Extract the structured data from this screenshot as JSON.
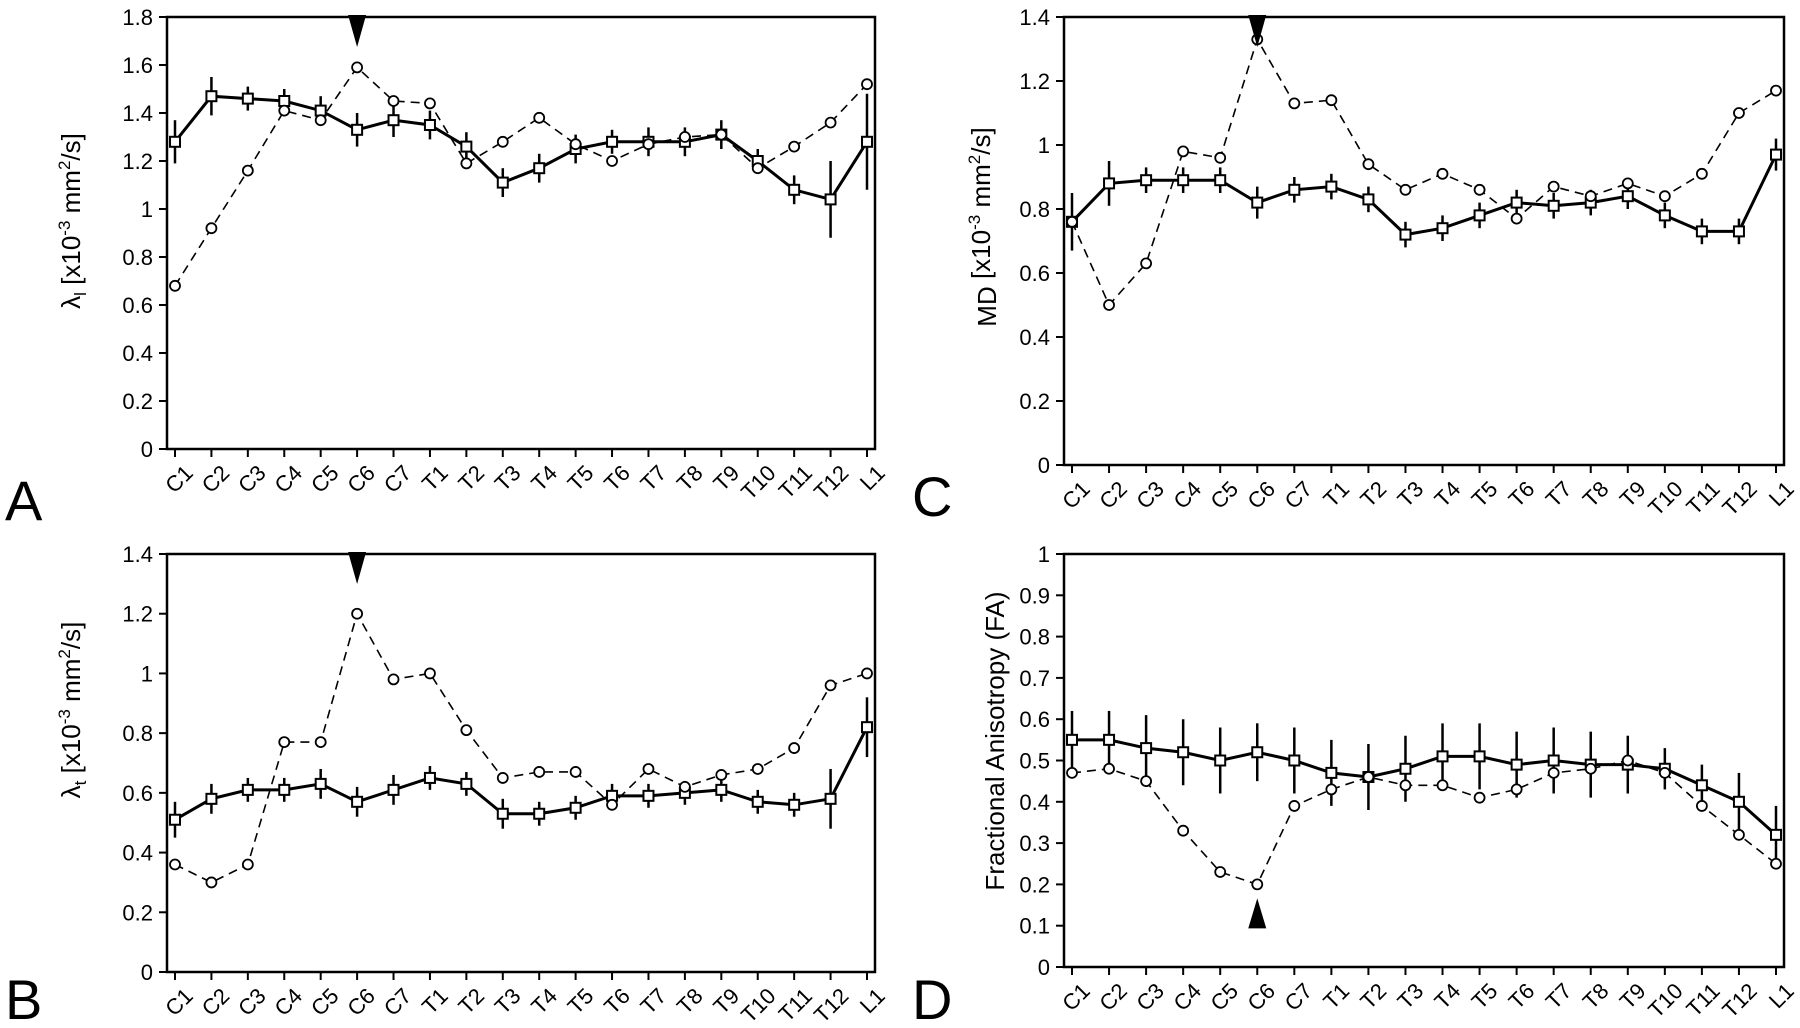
{
  "categories": [
    "C1",
    "C2",
    "C3",
    "C4",
    "C5",
    "C6",
    "C7",
    "T1",
    "T2",
    "T3",
    "T4",
    "T5",
    "T6",
    "T7",
    "T8",
    "T9",
    "T10",
    "T11",
    "T12",
    "L1"
  ],
  "colors": {
    "line": "#000000",
    "background": "#ffffff"
  },
  "chart_data": [
    {
      "panel": "A",
      "type": "line",
      "ylabel_main": "λ",
      "ylabel_sub": "l",
      "ylabel_rest": " [x10",
      "ylabel_exp": "-3",
      "ylabel_unit": " mm",
      "ylabel_exp2": "2",
      "ylabel_end": "/s]",
      "ylim": [
        0,
        1.8
      ],
      "yticks": [
        0,
        0.2,
        0.4,
        0.6,
        0.8,
        1,
        1.2,
        1.4,
        1.6,
        1.8
      ],
      "yticklabels": [
        "0",
        "0.2",
        "0.4",
        "0.6",
        "0.8",
        "1",
        "1.2",
        "1.4",
        "1.6",
        "1.8"
      ],
      "arrow": {
        "category": "C6",
        "direction": "down"
      },
      "series": [
        {
          "marker": "square",
          "style": "solid",
          "values": [
            1.28,
            1.47,
            1.46,
            1.45,
            1.41,
            1.33,
            1.37,
            1.35,
            1.26,
            1.11,
            1.17,
            1.25,
            1.28,
            1.28,
            1.28,
            1.31,
            1.2,
            1.08,
            1.04,
            1.28
          ],
          "errors": [
            0.09,
            0.08,
            0.05,
            0.05,
            0.06,
            0.07,
            0.07,
            0.06,
            0.06,
            0.06,
            0.06,
            0.06,
            0.05,
            0.06,
            0.06,
            0.06,
            0.05,
            0.06,
            0.16,
            0.2
          ]
        },
        {
          "marker": "circle",
          "style": "dashed",
          "values": [
            0.68,
            0.92,
            1.16,
            1.41,
            1.37,
            1.59,
            1.45,
            1.44,
            1.19,
            1.28,
            1.38,
            1.27,
            1.2,
            1.27,
            1.3,
            1.31,
            1.17,
            1.26,
            1.36,
            1.52
          ]
        }
      ]
    },
    {
      "panel": "B",
      "type": "line",
      "ylabel_main": "λ",
      "ylabel_sub": "t",
      "ylabel_rest": " [x10",
      "ylabel_exp": "-3",
      "ylabel_unit": " mm",
      "ylabel_exp2": "2",
      "ylabel_end": "/s]",
      "ylim": [
        0,
        1.4
      ],
      "yticks": [
        0,
        0.2,
        0.4,
        0.6,
        0.8,
        1,
        1.2,
        1.4
      ],
      "yticklabels": [
        "0",
        "0.2",
        "0.4",
        "0.6",
        "0.8",
        "1",
        "1.2",
        "1.4"
      ],
      "arrow": {
        "category": "C6",
        "direction": "down"
      },
      "series": [
        {
          "marker": "square",
          "style": "solid",
          "values": [
            0.51,
            0.58,
            0.61,
            0.61,
            0.63,
            0.57,
            0.61,
            0.65,
            0.63,
            0.53,
            0.53,
            0.55,
            0.59,
            0.59,
            0.6,
            0.61,
            0.57,
            0.56,
            0.58,
            0.82
          ],
          "errors": [
            0.06,
            0.05,
            0.04,
            0.04,
            0.05,
            0.05,
            0.05,
            0.04,
            0.04,
            0.05,
            0.04,
            0.04,
            0.04,
            0.04,
            0.04,
            0.04,
            0.04,
            0.04,
            0.1,
            0.1
          ]
        },
        {
          "marker": "circle",
          "style": "dashed",
          "values": [
            0.36,
            0.3,
            0.36,
            0.77,
            0.77,
            1.2,
            0.98,
            1.0,
            0.81,
            0.65,
            0.67,
            0.67,
            0.56,
            0.68,
            0.62,
            0.66,
            0.68,
            0.75,
            0.96,
            1.0
          ]
        }
      ]
    },
    {
      "panel": "C",
      "type": "line",
      "ylabel_main": "MD",
      "ylabel_sub": "",
      "ylabel_rest": " [x10",
      "ylabel_exp": "-3",
      "ylabel_unit": " mm",
      "ylabel_exp2": "2",
      "ylabel_end": "/s]",
      "ylim": [
        0,
        1.4
      ],
      "yticks": [
        0,
        0.2,
        0.4,
        0.6,
        0.8,
        1,
        1.2,
        1.4
      ],
      "yticklabels": [
        "0",
        "0.2",
        "0.4",
        "0.6",
        "0.8",
        "1",
        "1.2",
        "1.4"
      ],
      "arrow": {
        "category": "C6",
        "direction": "down"
      },
      "series": [
        {
          "marker": "square",
          "style": "solid",
          "values": [
            0.76,
            0.88,
            0.89,
            0.89,
            0.89,
            0.82,
            0.86,
            0.87,
            0.83,
            0.72,
            0.74,
            0.78,
            0.82,
            0.81,
            0.82,
            0.84,
            0.78,
            0.73,
            0.73,
            0.97
          ],
          "errors": [
            0.09,
            0.07,
            0.04,
            0.04,
            0.04,
            0.05,
            0.04,
            0.04,
            0.04,
            0.04,
            0.04,
            0.04,
            0.04,
            0.04,
            0.04,
            0.04,
            0.04,
            0.04,
            0.04,
            0.05
          ]
        },
        {
          "marker": "circle",
          "style": "dashed",
          "values": [
            0.76,
            0.5,
            0.63,
            0.98,
            0.96,
            1.33,
            1.13,
            1.14,
            0.94,
            0.86,
            0.91,
            0.86,
            0.77,
            0.87,
            0.84,
            0.88,
            0.84,
            0.91,
            1.1,
            1.17
          ]
        }
      ]
    },
    {
      "panel": "D",
      "type": "line",
      "ylabel_main": "Fractional Anisotropy (FA)",
      "ylabel_sub": "",
      "ylabel_rest": "",
      "ylabel_exp": "",
      "ylabel_unit": "",
      "ylabel_exp2": "",
      "ylabel_end": "",
      "ylim": [
        0,
        1
      ],
      "yticks": [
        0,
        0.1,
        0.2,
        0.3,
        0.4,
        0.5,
        0.6,
        0.7,
        0.8,
        0.9,
        1
      ],
      "yticklabels": [
        "0",
        "0.1",
        "0.2",
        "0.3",
        "0.4",
        "0.5",
        "0.6",
        "0.7",
        "0.8",
        "0.9",
        "1"
      ],
      "arrow": {
        "category": "C6",
        "direction": "up"
      },
      "series": [
        {
          "marker": "square",
          "style": "solid",
          "values": [
            0.55,
            0.55,
            0.53,
            0.52,
            0.5,
            0.52,
            0.5,
            0.47,
            0.46,
            0.48,
            0.51,
            0.51,
            0.49,
            0.5,
            0.49,
            0.49,
            0.48,
            0.44,
            0.4,
            0.32
          ],
          "errors": [
            0.07,
            0.07,
            0.08,
            0.08,
            0.08,
            0.07,
            0.08,
            0.08,
            0.08,
            0.08,
            0.08,
            0.08,
            0.08,
            0.08,
            0.08,
            0.07,
            0.05,
            0.05,
            0.07,
            0.07
          ]
        },
        {
          "marker": "circle",
          "style": "dashed",
          "values": [
            0.47,
            0.48,
            0.45,
            0.33,
            0.23,
            0.2,
            0.39,
            0.43,
            0.46,
            0.44,
            0.44,
            0.41,
            0.43,
            0.47,
            0.48,
            0.5,
            0.47,
            0.39,
            0.32,
            0.25
          ]
        }
      ]
    }
  ]
}
